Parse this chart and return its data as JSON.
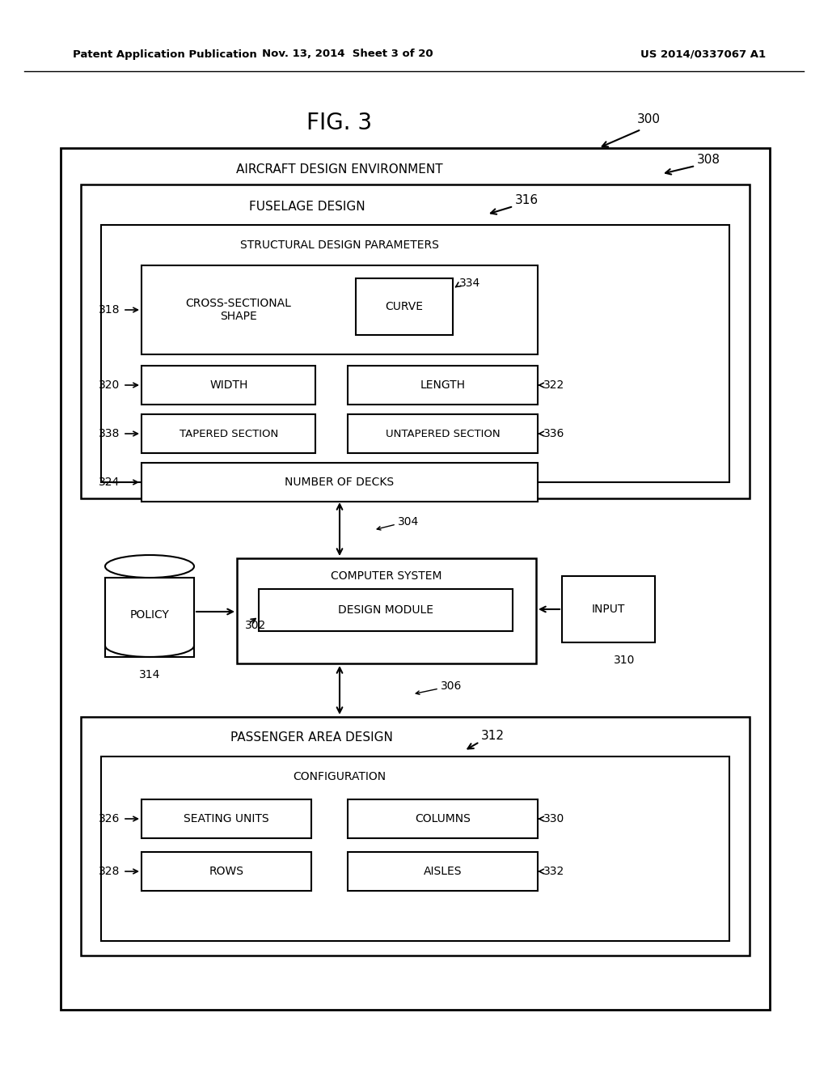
{
  "title": "FIG. 3",
  "header_left": "Patent Application Publication",
  "header_mid": "Nov. 13, 2014  Sheet 3 of 20",
  "header_right": "US 2014/0337067 A1",
  "bg_color": "#ffffff",
  "fig_label": "300",
  "outer_box_label": "308",
  "outer_box_text": "AIRCRAFT DESIGN ENVIRONMENT",
  "fuselage_box_label": "316",
  "fuselage_box_text": "FUSELAGE DESIGN",
  "struct_box_text": "STRUCTURAL DESIGN PARAMETERS",
  "cross_section_box_label": "318",
  "cross_section_box_text": "CROSS-SECTIONAL\nSHAPE",
  "curve_box_label": "334",
  "curve_box_text": "CURVE",
  "width_box_label": "320",
  "width_box_text": "WIDTH",
  "length_box_label": "322",
  "length_box_text": "LENGTH",
  "tapered_box_label": "338",
  "tapered_box_text": "TAPERED SECTION",
  "untapered_box_label": "336",
  "untapered_box_text": "UNTAPERED SECTION",
  "decks_box_label": "324",
  "decks_box_text": "NUMBER OF DECKS",
  "arrow_label": "304",
  "computer_box_label": "302",
  "computer_box_text": "COMPUTER SYSTEM",
  "design_module_text": "DESIGN MODULE",
  "policy_text": "POLICY",
  "policy_label": "314",
  "input_text": "INPUT",
  "input_label": "310",
  "arrow306_label": "306",
  "passenger_box_label": "312",
  "passenger_box_text": "PASSENGER AREA DESIGN",
  "config_box_text": "CONFIGURATION",
  "seating_box_label": "326",
  "seating_box_text": "SEATING UNITS",
  "columns_box_label": "330",
  "columns_box_text": "COLUMNS",
  "rows_box_label": "328",
  "rows_box_text": "ROWS",
  "aisles_box_label": "332",
  "aisles_box_text": "AISLES"
}
